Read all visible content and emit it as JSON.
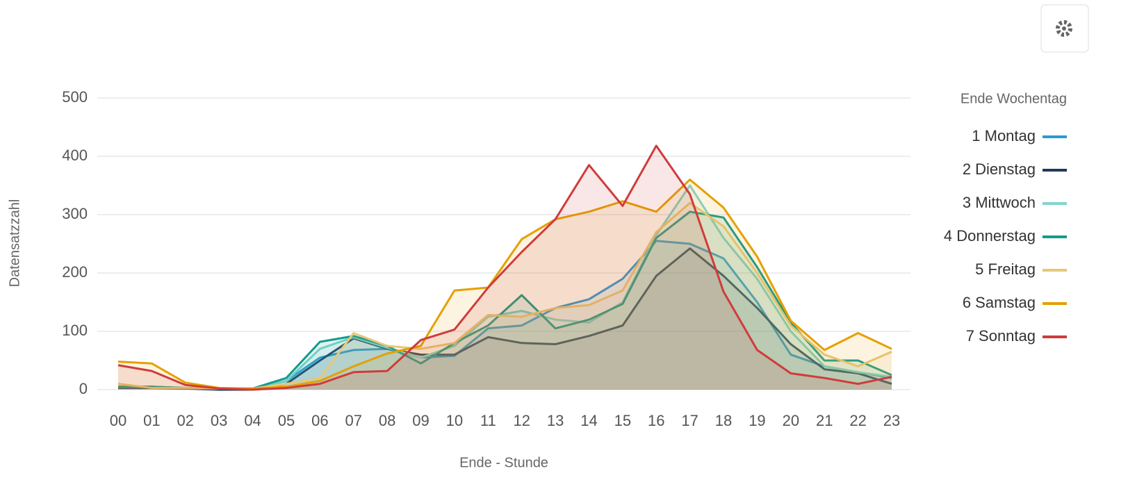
{
  "chart_data": {
    "type": "area",
    "x_label": "Ende - Stunde",
    "y_label": "Datensatzzahl",
    "legend_title": "Ende Wochentag",
    "legend": "right",
    "grid": true,
    "categories": [
      "00",
      "01",
      "02",
      "03",
      "04",
      "05",
      "06",
      "07",
      "08",
      "09",
      "10",
      "11",
      "12",
      "13",
      "14",
      "15",
      "16",
      "17",
      "18",
      "19",
      "20",
      "21",
      "22",
      "23"
    ],
    "ylim": [
      0,
      500
    ],
    "yticks": [
      0,
      100,
      200,
      300,
      400,
      500
    ],
    "series": [
      {
        "name": "1 Montag",
        "color": "#2a9ad8",
        "values": [
          5,
          5,
          3,
          2,
          2,
          15,
          55,
          68,
          70,
          55,
          58,
          105,
          110,
          140,
          155,
          190,
          255,
          250,
          225,
          150,
          60,
          40,
          30,
          20
        ]
      },
      {
        "name": "2 Dienstag",
        "color": "#1f3a5c",
        "values": [
          3,
          3,
          2,
          0,
          0,
          10,
          50,
          88,
          70,
          60,
          60,
          90,
          80,
          78,
          92,
          110,
          195,
          242,
          195,
          140,
          78,
          35,
          28,
          10
        ]
      },
      {
        "name": "3 Mittwoch",
        "color": "#7fd6cc",
        "values": [
          5,
          5,
          3,
          2,
          2,
          15,
          70,
          90,
          72,
          55,
          75,
          125,
          135,
          120,
          115,
          150,
          265,
          350,
          260,
          190,
          100,
          40,
          30,
          22
        ]
      },
      {
        "name": "4 Donnerstag",
        "color": "#139a8e",
        "values": [
          5,
          5,
          3,
          2,
          2,
          20,
          82,
          92,
          75,
          45,
          80,
          110,
          162,
          105,
          120,
          147,
          260,
          305,
          295,
          210,
          115,
          50,
          50,
          25
        ]
      },
      {
        "name": "5 Freitag",
        "color": "#e6c878",
        "values": [
          10,
          3,
          3,
          2,
          2,
          10,
          20,
          97,
          75,
          70,
          80,
          128,
          125,
          140,
          145,
          170,
          270,
          320,
          280,
          200,
          110,
          60,
          40,
          65
        ]
      },
      {
        "name": "6 Samstag",
        "color": "#e5a000",
        "values": [
          48,
          45,
          12,
          3,
          2,
          5,
          15,
          40,
          62,
          75,
          170,
          175,
          258,
          292,
          305,
          323,
          305,
          360,
          312,
          228,
          118,
          68,
          97,
          70
        ]
      },
      {
        "name": "7 Sonntag",
        "color": "#d03b3b",
        "values": [
          42,
          32,
          8,
          2,
          0,
          3,
          10,
          30,
          32,
          85,
          103,
          175,
          236,
          292,
          385,
          315,
          418,
          335,
          168,
          68,
          28,
          20,
          10,
          22
        ]
      }
    ]
  }
}
